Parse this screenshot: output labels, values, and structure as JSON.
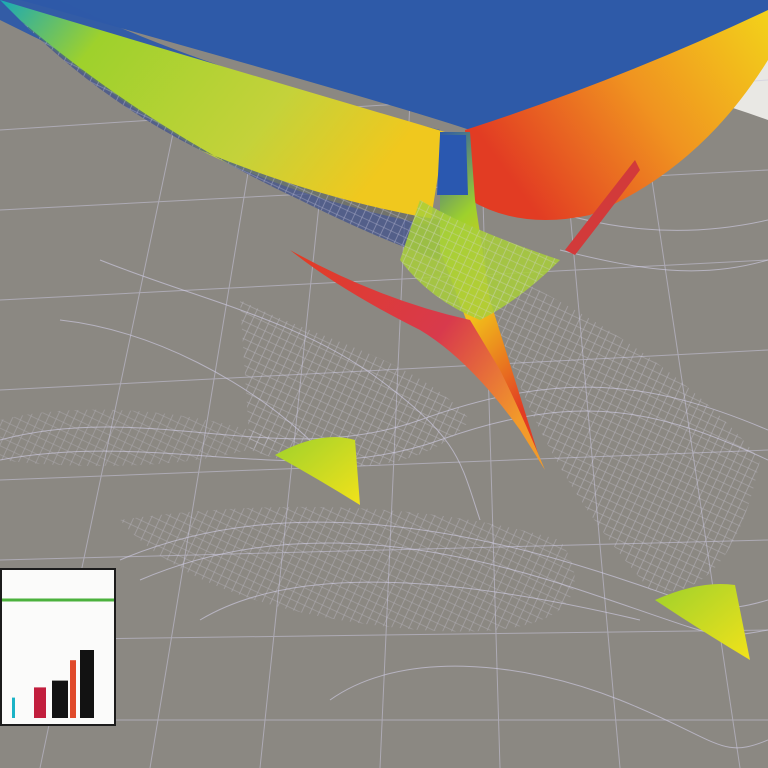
{
  "scene": {
    "description_colors": {
      "ground": "#8a8780",
      "wire": "#c9c6dd",
      "ribbon_blue": "#2e5aa8",
      "ribbon_green": "#9ed12c",
      "ribbon_yellow": "#f2c21a",
      "ribbon_red": "#e23c23",
      "ribbon_cyan": "#18a8b8"
    }
  },
  "inset_chart": {
    "chart_data": {
      "type": "bar",
      "categories": [
        "",
        "",
        "",
        "",
        ""
      ],
      "values": [
        0.3,
        0.45,
        0.55,
        0.85,
        1.0
      ],
      "colors": [
        "#1bb3c6",
        "#c21e3d",
        "#121212",
        "#e04a2a",
        "#121212"
      ],
      "ylim": [
        0,
        1
      ],
      "grid": false,
      "top_line_color": "#4bb13c"
    }
  }
}
